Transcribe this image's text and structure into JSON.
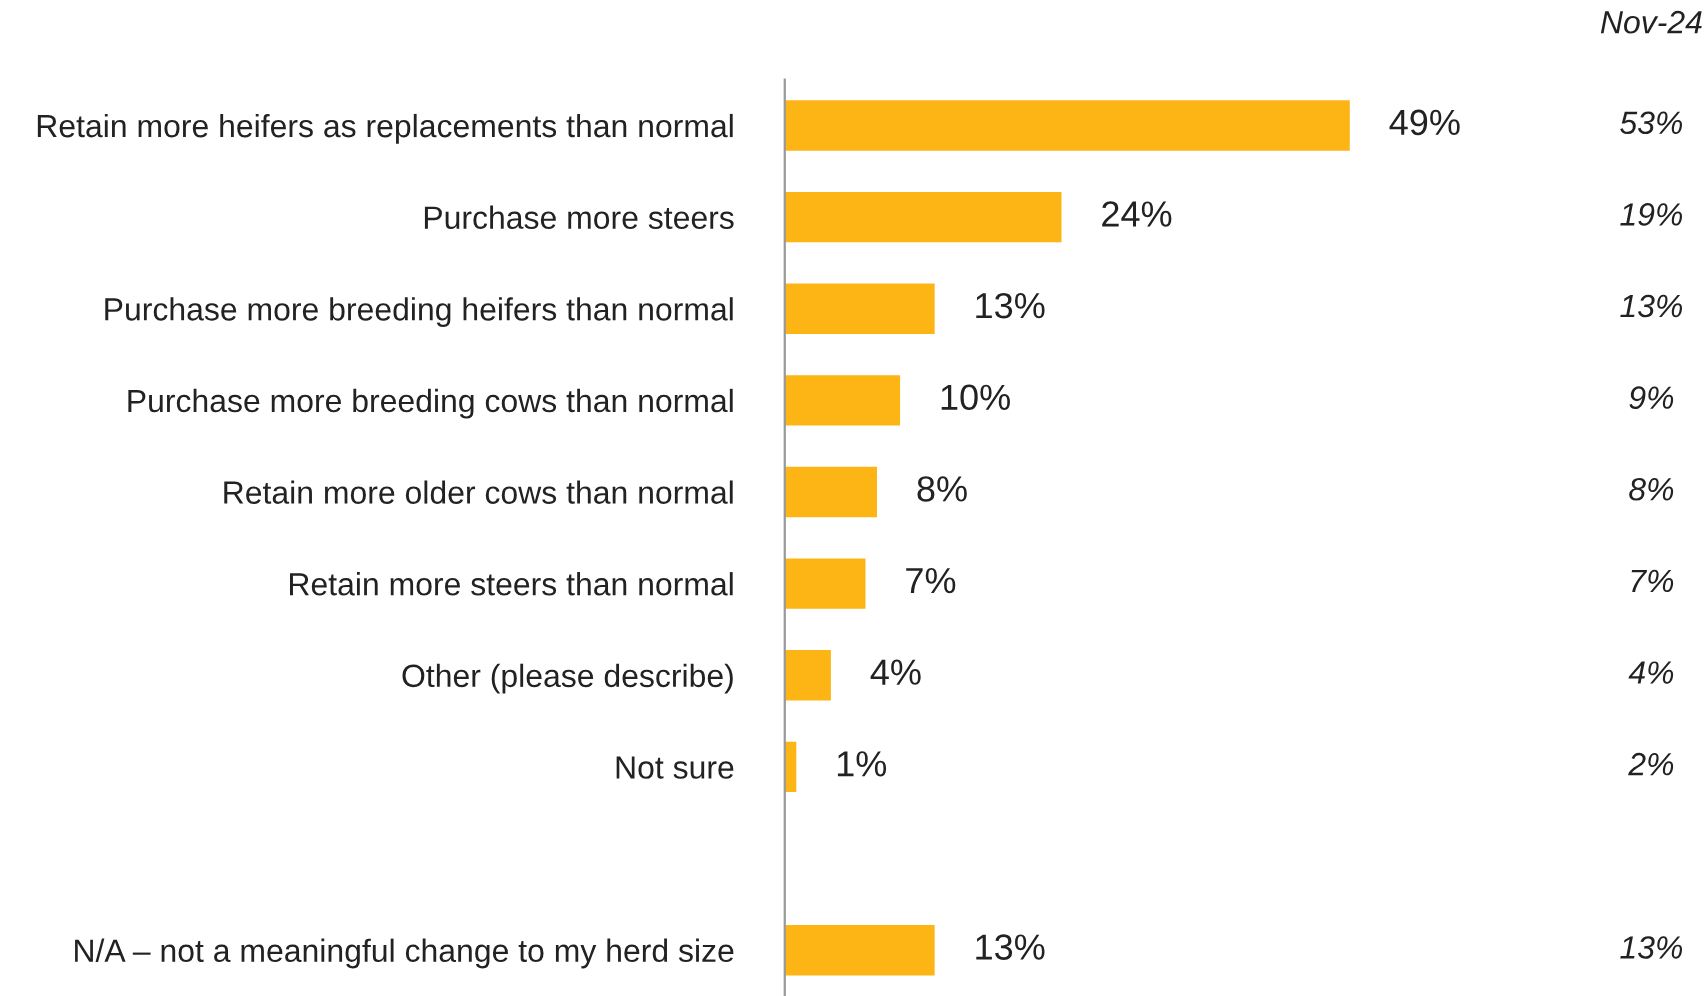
{
  "chart_data": {
    "type": "bar",
    "orientation": "horizontal",
    "categories": [
      "Retain more heifers as replacements than normal",
      "Purchase more steers",
      "Purchase more breeding heifers than normal",
      "Purchase more breeding cows than normal",
      "Retain more older cows than normal",
      "Retain more steers than normal",
      "Other (please describe)",
      "Not sure",
      null,
      "N/A – not a meaningful change to my herd size"
    ],
    "series": [
      {
        "color": "#fdb515",
        "values": [
          49,
          24,
          13,
          10,
          8,
          7,
          4,
          1,
          null,
          13
        ],
        "value_labels": [
          "49%",
          "24%",
          "13%",
          "10%",
          "8%",
          "7%",
          "4%",
          "1%",
          null,
          "13%"
        ]
      }
    ],
    "annotations": [
      "Nov-24",
      "53%",
      "19%",
      "13%",
      "9%",
      "8%",
      "7%",
      "4%",
      "2%",
      "13%"
    ],
    "legend": false,
    "grid": false
  }
}
